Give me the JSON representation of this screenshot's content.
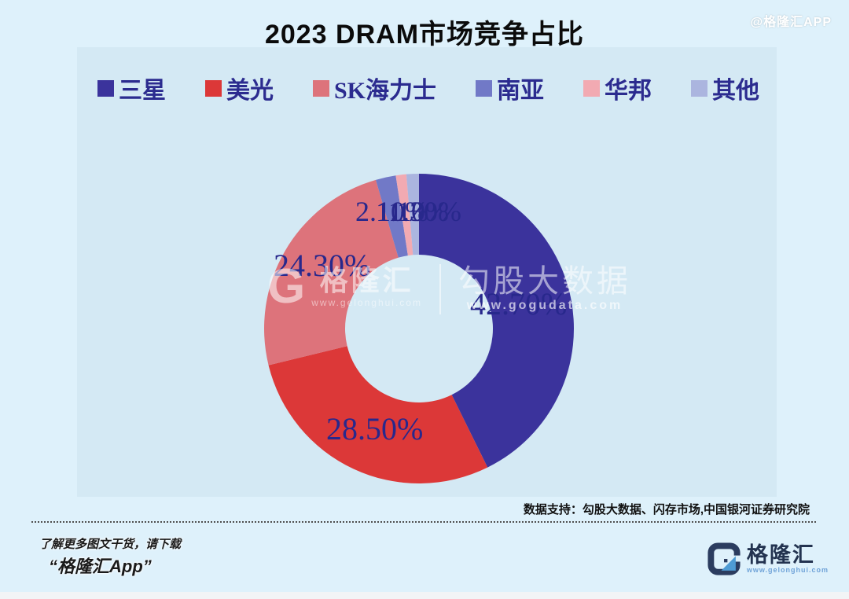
{
  "header": {
    "title": "2023 DRAM市场竞争占比",
    "watermark": "@格隆汇APP"
  },
  "chart_data": {
    "type": "pie",
    "subtype": "donut",
    "title": "2023 DRAM市场竞争占比",
    "categories": [
      "三星",
      "美光",
      "SK海力士",
      "南亚",
      "华邦",
      "其他"
    ],
    "values": [
      42.7,
      28.5,
      24.3,
      2.1,
      1.1,
      1.3
    ],
    "labels": [
      "42.70%",
      "28.50%",
      "24.30%",
      "2.10%",
      "1.10%",
      "1.30%"
    ],
    "colors": [
      "#3b339c",
      "#dc3838",
      "#dd737b",
      "#7179c7",
      "#f2aab2",
      "#abb5df"
    ],
    "label_color": "#28288c",
    "legend_position": "top",
    "start_angle_deg": 0,
    "direction": "clockwise",
    "inner_radius_ratio": 0.48
  },
  "watermark_center": {
    "g_mark": "G",
    "brand": "格隆汇",
    "brand_url": "www.gelonghui.com",
    "data_brand": "勾股大数据",
    "data_url": "www.gogudata.com"
  },
  "footer": {
    "data_support": "数据支持：勾股大数据、闪存市场,中国银河证券研究院",
    "promo_line1": "了解更多图文干货，请下载",
    "promo_line2": "“格隆汇App”",
    "logo_name": "格隆汇",
    "logo_url": "www.gelonghui.com"
  },
  "colors": {
    "page_bg": "#def1fb",
    "panel_bg": "#d4e9f4"
  }
}
